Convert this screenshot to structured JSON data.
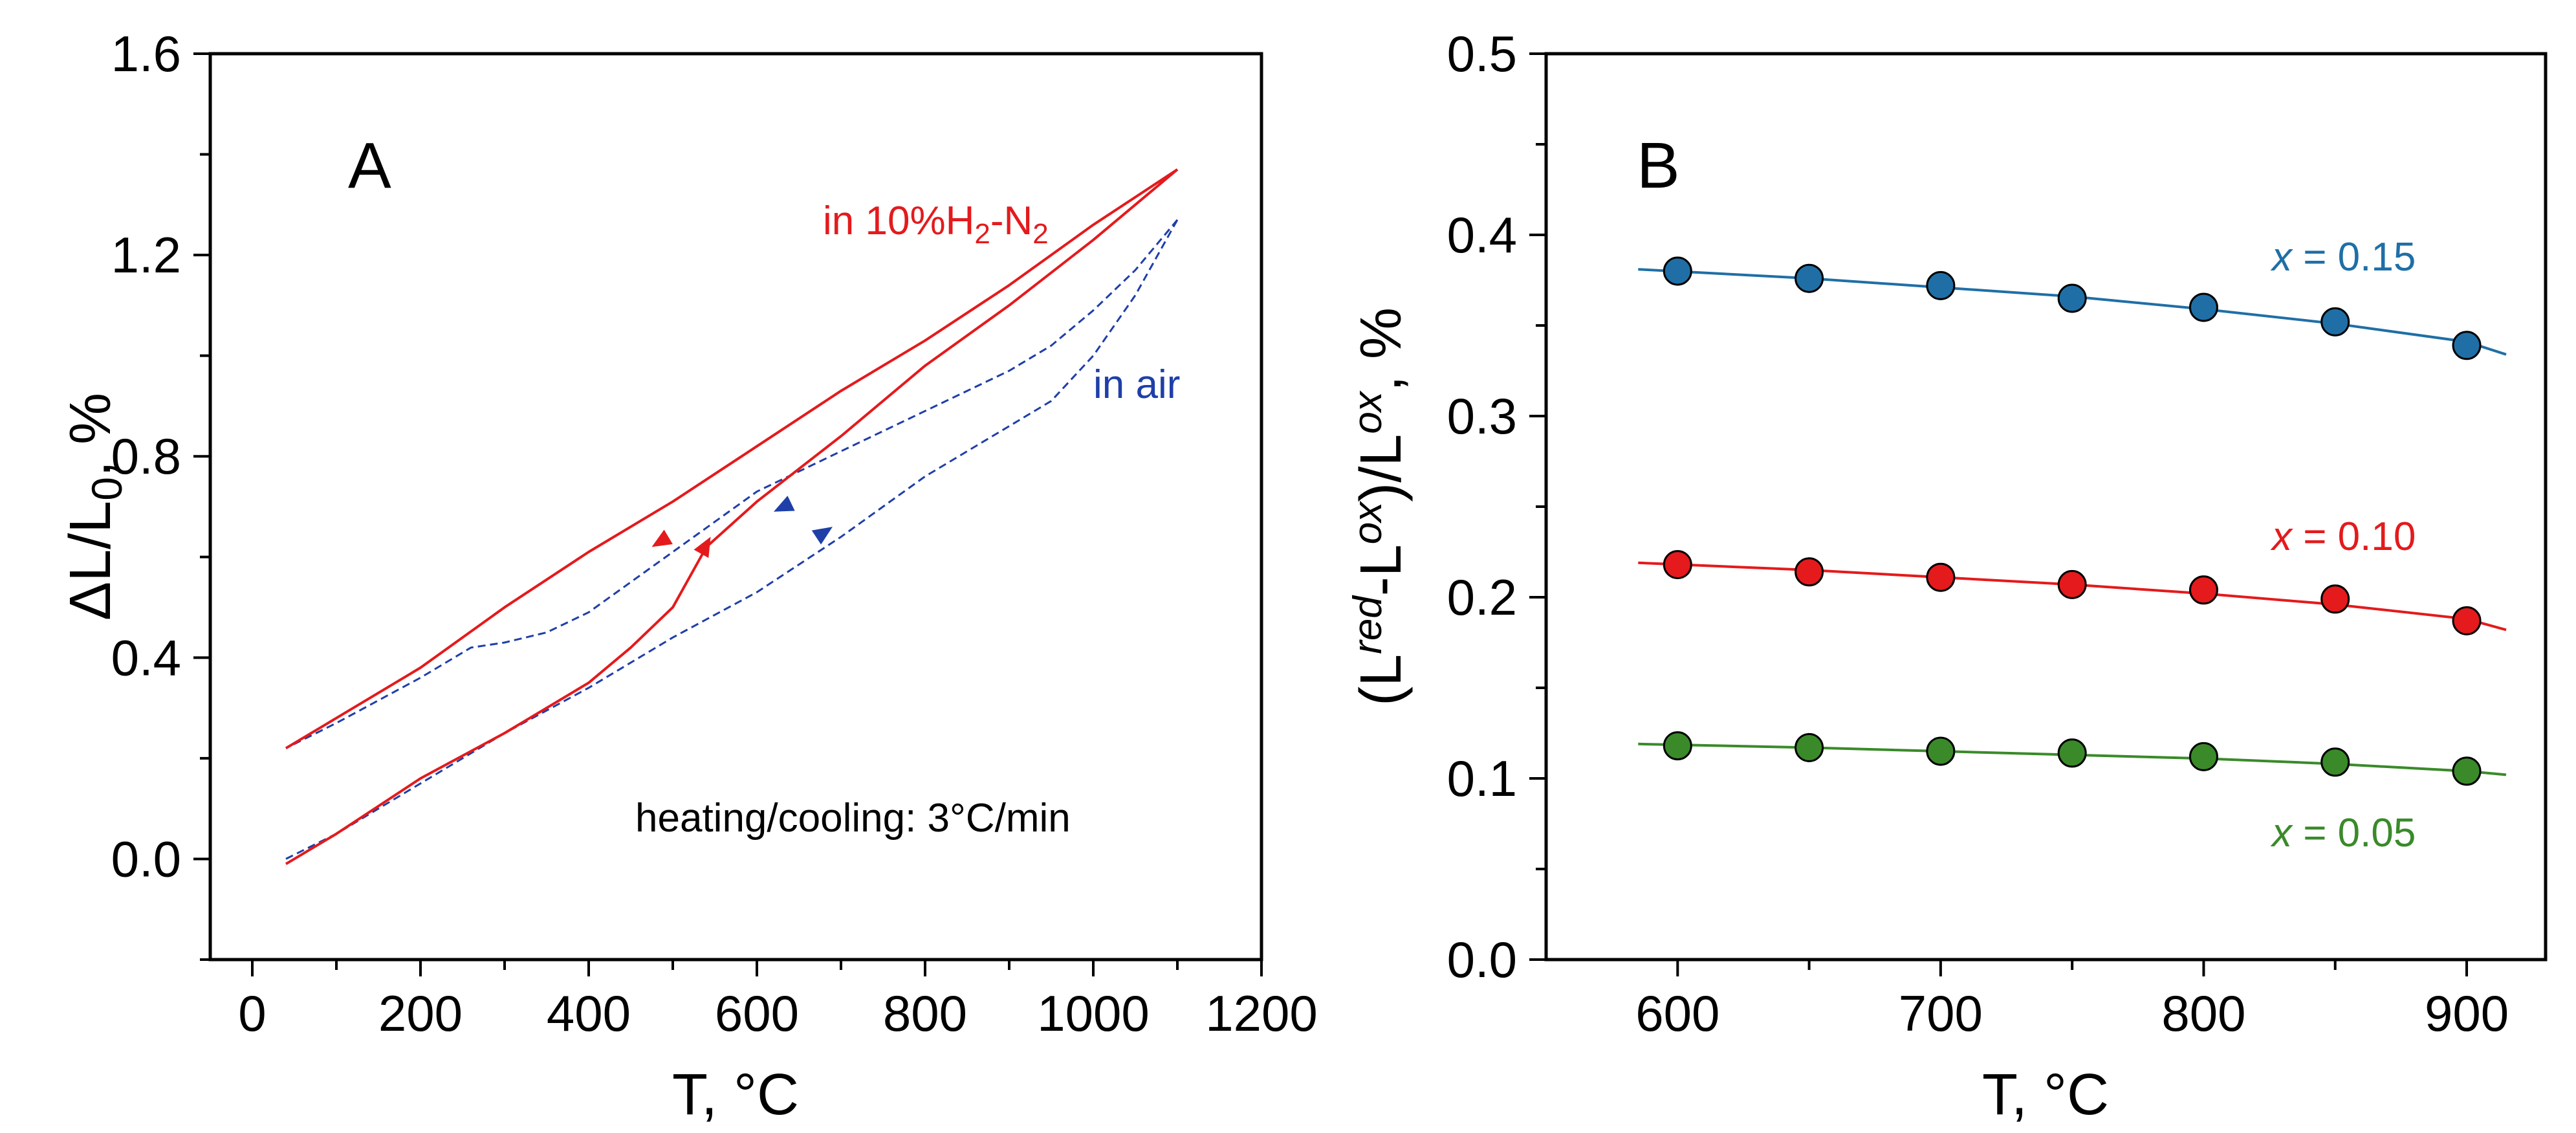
{
  "chart_data": [
    {
      "type": "line",
      "panel_label": "A",
      "xlabel": "T, °C",
      "ylabel": {
        "base": "ΔL/L",
        "sub": "0",
        "suffix": ", %"
      },
      "xlim": [
        -50,
        1200
      ],
      "ylim": [
        -0.2,
        1.6
      ],
      "x_ticks": [
        0,
        200,
        400,
        600,
        800,
        1000,
        1200
      ],
      "x_tick_labels": [
        "0",
        "200",
        "400",
        "600",
        "800",
        "1000",
        "1200"
      ],
      "x_minor_ticks": [
        100,
        300,
        500,
        700,
        900,
        1100
      ],
      "y_ticks": [
        0.0,
        0.4,
        0.8,
        1.2,
        1.6
      ],
      "y_tick_labels": [
        "0.0",
        "0.4",
        "0.8",
        "1.2",
        "1.6"
      ],
      "y_minor_ticks": [
        -0.2,
        0.2,
        0.6,
        1.0,
        1.4
      ],
      "annotation": "heating/cooling: 3°C/min",
      "series": [
        {
          "name": "in 10%H2-N2",
          "legend_parts": [
            "in 10%H",
            "2",
            "-N",
            "2"
          ],
          "color": "#e41a1c",
          "style": "solid",
          "heating": {
            "x": [
              40,
              100,
              200,
              300,
              400,
              450,
              500,
              540,
              600,
              700,
              800,
              900,
              1000,
              1100
            ],
            "y": [
              -0.01,
              0.05,
              0.16,
              0.25,
              0.35,
              0.42,
              0.5,
              0.62,
              0.71,
              0.84,
              0.98,
              1.1,
              1.23,
              1.37
            ]
          },
          "cooling": {
            "x": [
              1100,
              1000,
              900,
              800,
              700,
              600,
              500,
              400,
              300,
              200,
              100,
              40
            ],
            "y": [
              1.37,
              1.26,
              1.14,
              1.03,
              0.93,
              0.82,
              0.71,
              0.61,
              0.5,
              0.38,
              0.28,
              0.22
            ]
          },
          "heating_arrow": {
            "x": 545,
            "y": 0.64
          },
          "cooling_arrow": {
            "x": 475,
            "y": 0.62
          }
        },
        {
          "name": "in air",
          "color": "#1f3fa8",
          "style": "dashed",
          "heating": {
            "x": [
              40,
              100,
              200,
              300,
              400,
              500,
              600,
              700,
              800,
              900,
              950,
              1000,
              1050,
              1100
            ],
            "y": [
              0.0,
              0.05,
              0.15,
              0.25,
              0.34,
              0.44,
              0.53,
              0.64,
              0.76,
              0.86,
              0.91,
              1.0,
              1.12,
              1.27
            ]
          },
          "cooling": {
            "x": [
              1100,
              1050,
              1000,
              950,
              900,
              850,
              800,
              700,
              600,
              500,
              400,
              350,
              300,
              260,
              200,
              100,
              40
            ],
            "y": [
              1.27,
              1.17,
              1.09,
              1.02,
              0.97,
              0.93,
              0.89,
              0.81,
              0.73,
              0.61,
              0.49,
              0.45,
              0.43,
              0.42,
              0.36,
              0.27,
              0.22
            ]
          },
          "heating_arrow": {
            "x": 690,
            "y": 0.66
          },
          "cooling_arrow": {
            "x": 620,
            "y": 0.69
          }
        }
      ]
    },
    {
      "type": "scatter",
      "panel_label": "B",
      "xlabel": "T, °C",
      "ylabel": {
        "parts": [
          "(L",
          "red",
          "-L",
          "ox",
          ")/L",
          "ox",
          ", %"
        ]
      },
      "xlim": [
        550,
        930
      ],
      "ylim": [
        0.0,
        0.5
      ],
      "x_ticks": [
        600,
        700,
        800,
        900
      ],
      "x_tick_labels": [
        "600",
        "700",
        "800",
        "900"
      ],
      "x_minor_ticks": [
        650,
        750,
        850
      ],
      "y_ticks": [
        0.0,
        0.1,
        0.2,
        0.3,
        0.4,
        0.5
      ],
      "y_tick_labels": [
        "0.0",
        "0.1",
        "0.2",
        "0.3",
        "0.4",
        "0.5"
      ],
      "y_minor_ticks": [
        0.05,
        0.15,
        0.25,
        0.35,
        0.45
      ],
      "x": [
        600,
        650,
        700,
        750,
        800,
        850,
        900
      ],
      "series": [
        {
          "name": "x = 0.15",
          "label_var": "x",
          "label_value": " = 0.15",
          "color": "#1f6fa6",
          "values": [
            0.38,
            0.376,
            0.372,
            0.365,
            0.36,
            0.352,
            0.339
          ],
          "fit_x": [
            585,
            650,
            700,
            750,
            800,
            850,
            900,
            915
          ],
          "fit_y": [
            0.381,
            0.376,
            0.371,
            0.366,
            0.359,
            0.351,
            0.341,
            0.334
          ]
        },
        {
          "name": "x = 0.10",
          "label_var": "x",
          "label_value": " = 0.10",
          "color": "#e41a1c",
          "values": [
            0.218,
            0.214,
            0.211,
            0.207,
            0.204,
            0.199,
            0.187
          ],
          "fit_x": [
            585,
            650,
            700,
            750,
            800,
            850,
            900,
            915
          ],
          "fit_y": [
            0.219,
            0.215,
            0.211,
            0.207,
            0.202,
            0.196,
            0.188,
            0.182
          ]
        },
        {
          "name": "x = 0.05",
          "label_var": "x",
          "label_value": " = 0.05",
          "color": "#3a8a2a",
          "values": [
            0.118,
            0.117,
            0.115,
            0.114,
            0.112,
            0.109,
            0.104
          ],
          "fit_x": [
            585,
            650,
            700,
            750,
            800,
            850,
            900,
            915
          ],
          "fit_y": [
            0.119,
            0.117,
            0.115,
            0.113,
            0.111,
            0.108,
            0.104,
            0.102
          ]
        }
      ]
    }
  ]
}
